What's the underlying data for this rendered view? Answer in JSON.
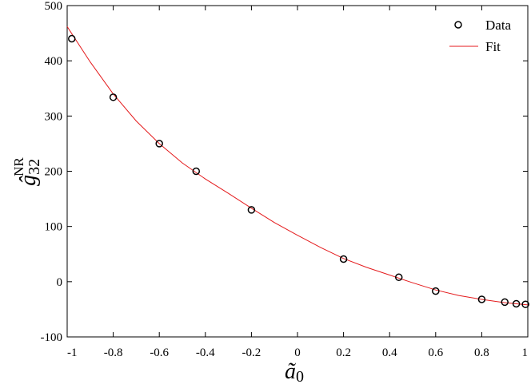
{
  "chart_data": {
    "type": "scatter",
    "xlim": [
      -1,
      1
    ],
    "ylim": [
      -100,
      500
    ],
    "x_ticks": [
      -1,
      -0.8,
      -0.6,
      -0.4,
      -0.2,
      0,
      0.2,
      0.4,
      0.6,
      0.8,
      1
    ],
    "x_tick_labels": [
      "-1",
      "-0.8",
      "-0.6",
      "-0.4",
      "-0.2",
      "0",
      "0.2",
      "0.4",
      "0.6",
      "0.8",
      "1"
    ],
    "y_ticks": [
      -100,
      0,
      100,
      200,
      300,
      400,
      500
    ],
    "y_tick_labels": [
      "-100",
      "0",
      "100",
      "200",
      "300",
      "400",
      "500"
    ],
    "xlabel": {
      "base": "ã",
      "sub": "0"
    },
    "ylabel": {
      "base": "ĝ",
      "sub": "32",
      "sup": "NR"
    },
    "grid": false,
    "legend": {
      "placement": "top-right",
      "entries": [
        "Data",
        "Fit"
      ]
    },
    "series": [
      {
        "name": "Data",
        "kind": "markers",
        "color": "#000000",
        "points": [
          {
            "x": -0.98,
            "y": 440
          },
          {
            "x": -0.8,
            "y": 334
          },
          {
            "x": -0.6,
            "y": 250
          },
          {
            "x": -0.44,
            "y": 200
          },
          {
            "x": -0.2,
            "y": 130
          },
          {
            "x": 0.2,
            "y": 41
          },
          {
            "x": 0.44,
            "y": 8
          },
          {
            "x": 0.6,
            "y": -17
          },
          {
            "x": 0.8,
            "y": -32
          },
          {
            "x": 0.9,
            "y": -37
          },
          {
            "x": 0.95,
            "y": -40
          },
          {
            "x": 0.99,
            "y": -41
          }
        ]
      },
      {
        "name": "Fit",
        "kind": "line",
        "color": "#e41a1c",
        "points": [
          {
            "x": -1.0,
            "y": 462
          },
          {
            "x": -0.9,
            "y": 398
          },
          {
            "x": -0.8,
            "y": 340
          },
          {
            "x": -0.7,
            "y": 291
          },
          {
            "x": -0.6,
            "y": 250
          },
          {
            "x": -0.5,
            "y": 215
          },
          {
            "x": -0.4,
            "y": 186
          },
          {
            "x": -0.3,
            "y": 160
          },
          {
            "x": -0.2,
            "y": 133
          },
          {
            "x": -0.1,
            "y": 107
          },
          {
            "x": 0.0,
            "y": 84
          },
          {
            "x": 0.1,
            "y": 62
          },
          {
            "x": 0.2,
            "y": 42
          },
          {
            "x": 0.3,
            "y": 26
          },
          {
            "x": 0.4,
            "y": 12
          },
          {
            "x": 0.5,
            "y": -2
          },
          {
            "x": 0.6,
            "y": -15
          },
          {
            "x": 0.7,
            "y": -25
          },
          {
            "x": 0.8,
            "y": -32
          },
          {
            "x": 0.9,
            "y": -38
          },
          {
            "x": 1.0,
            "y": -42
          }
        ]
      }
    ]
  }
}
